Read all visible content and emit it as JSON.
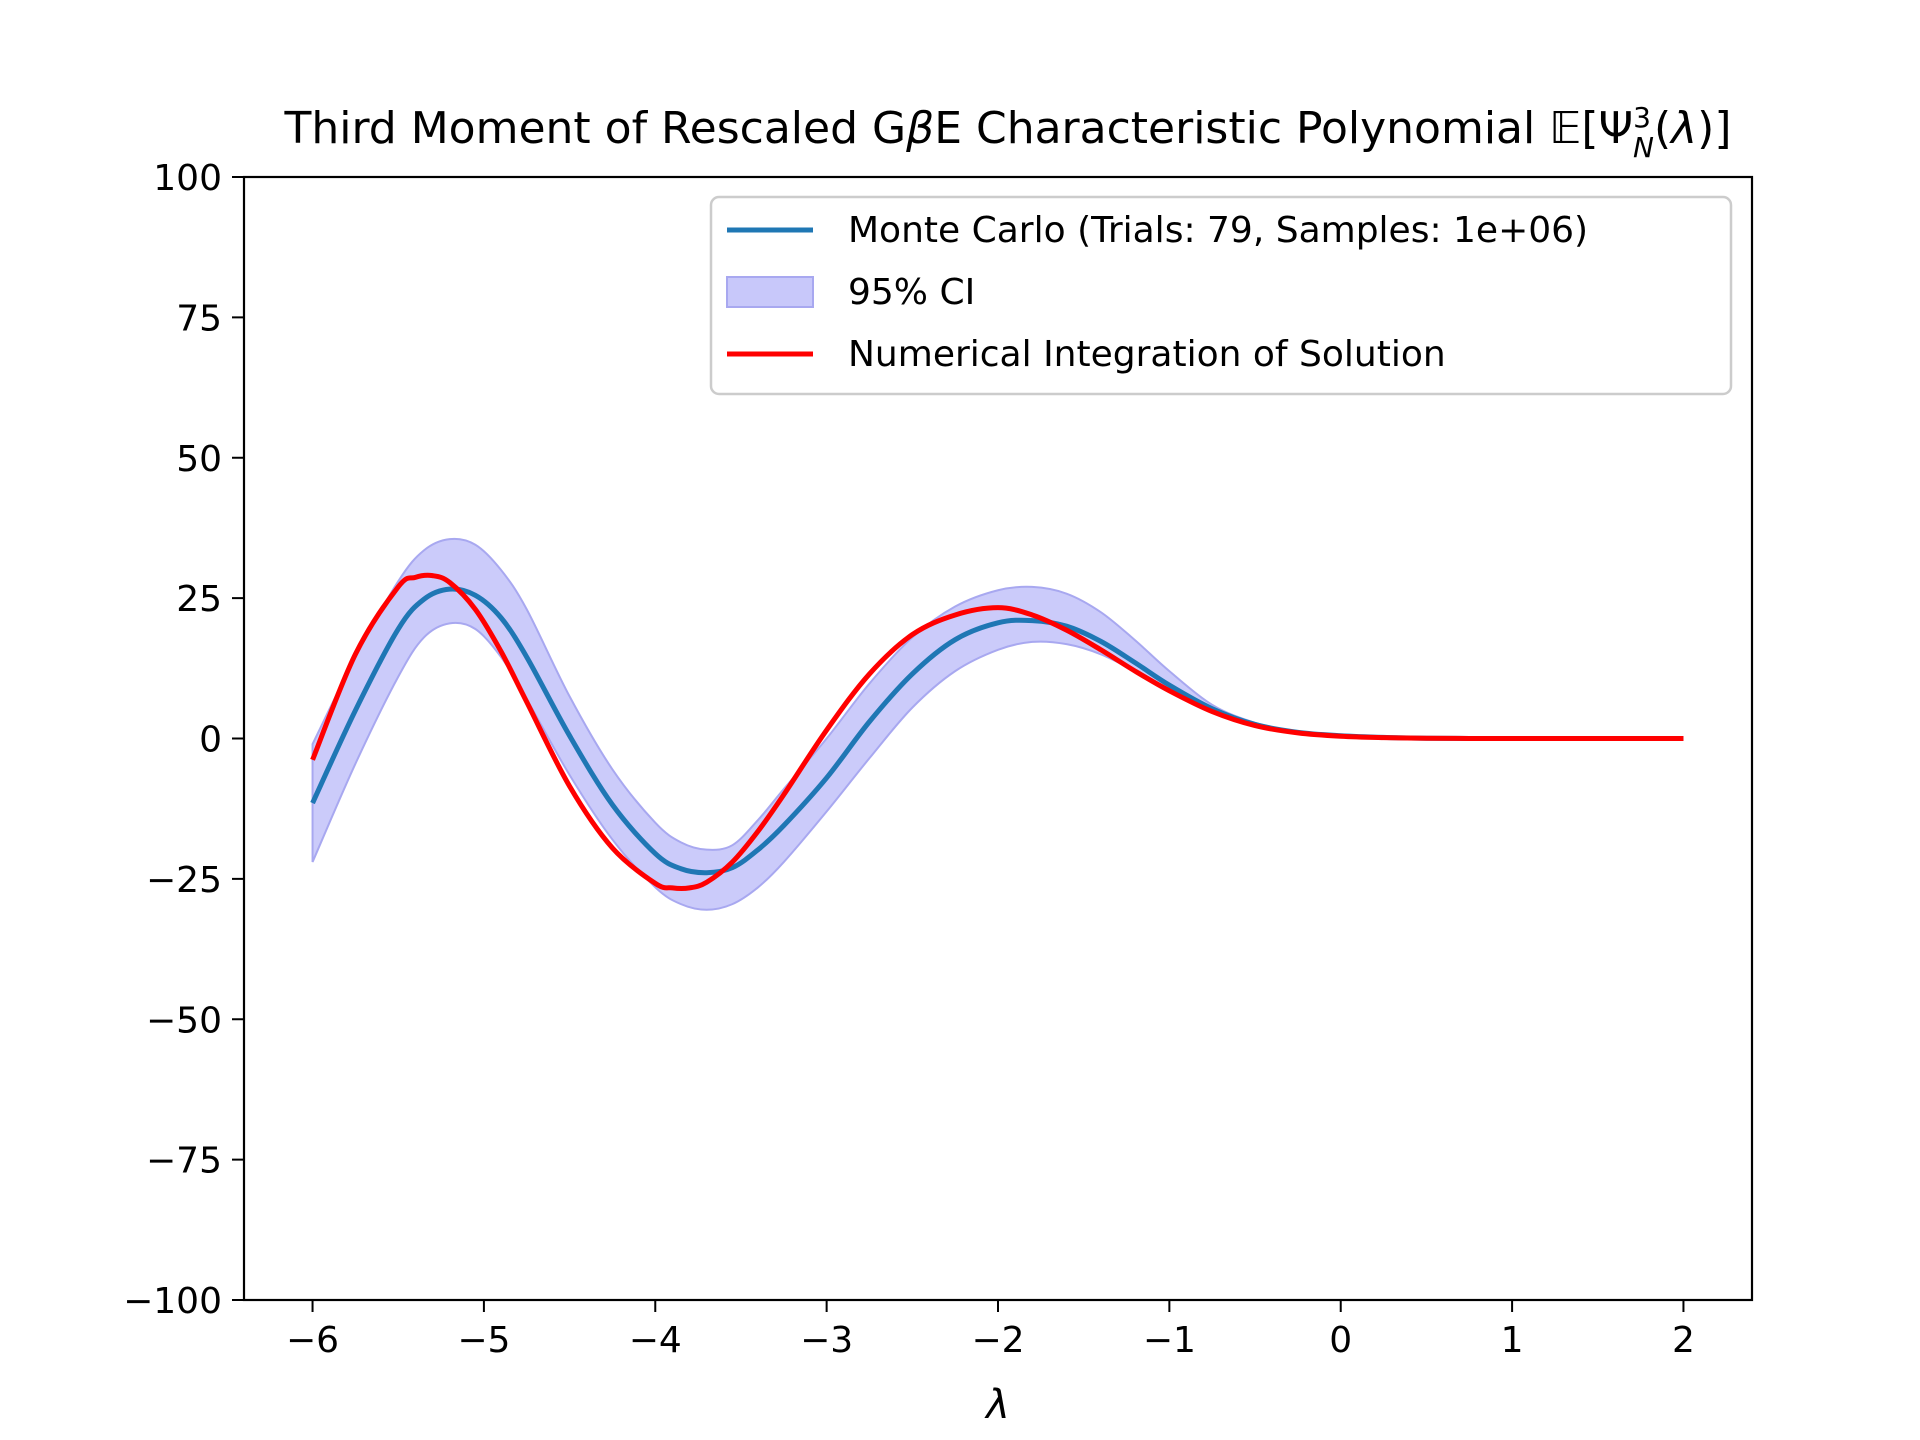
{
  "chart_data": {
    "type": "line",
    "title": "Third Moment of Rescaled GβE Characteristic Polynomial 𝔼[Ψ³_N(λ)]",
    "title_parts": {
      "prefix": "Third Moment of Rescaled G",
      "beta": "β",
      "mid": "E Characteristic Polynomial ",
      "expect": "𝔼",
      "bracket_open": "[",
      "psi": "Ψ",
      "sup": "3",
      "sub": "N",
      "open_paren": "(",
      "lambda": "λ",
      "close": ")]"
    },
    "xlabel": "λ",
    "ylabel": "",
    "xlim": [
      -6.4,
      2.4
    ],
    "ylim": [
      -100,
      100
    ],
    "x_ticks": [
      -6,
      -5,
      -4,
      -3,
      -2,
      -1,
      0,
      1,
      2
    ],
    "x_tick_labels": [
      "−6",
      "−5",
      "−4",
      "−3",
      "−2",
      "−1",
      "0",
      "1",
      "2"
    ],
    "y_ticks": [
      100,
      75,
      50,
      25,
      0,
      -25,
      -50,
      -75,
      -100
    ],
    "y_tick_labels": [
      "100",
      "75",
      "50",
      "25",
      "0",
      "−25",
      "−50",
      "−75",
      "−100"
    ],
    "grid": false,
    "legend_position": "top-right",
    "colors": {
      "monte_carlo": "#1f77b4",
      "ci_fill": "#c8c8fa",
      "ci_edge": "#a8a8f0",
      "numerical": "#ff0000"
    },
    "series": [
      {
        "name": "Monte Carlo (Trials: 79, Samples: 1e+06)",
        "color": "#1f77b4",
        "x": [
          -6.0,
          -5.75,
          -5.5,
          -5.35,
          -5.2,
          -5.05,
          -4.9,
          -4.75,
          -4.5,
          -4.25,
          -4.0,
          -3.85,
          -3.7,
          -3.55,
          -3.4,
          -3.25,
          -3.0,
          -2.75,
          -2.5,
          -2.25,
          -2.0,
          -1.8,
          -1.6,
          -1.4,
          -1.2,
          -1.0,
          -0.75,
          -0.5,
          -0.25,
          0.0,
          0.25,
          0.5,
          0.75,
          1.0,
          1.5,
          2.0
        ],
        "y": [
          -11.5,
          5.0,
          19.5,
          24.8,
          26.6,
          25.5,
          21.5,
          14.5,
          0.5,
          -11.8,
          -20.5,
          -23.2,
          -23.9,
          -23.0,
          -19.8,
          -15.5,
          -7.0,
          3.0,
          11.5,
          17.6,
          20.6,
          21.0,
          20.0,
          17.3,
          13.5,
          9.5,
          5.3,
          2.5,
          1.1,
          0.5,
          0.2,
          0.05,
          0.01,
          0.0,
          0.0,
          0.0
        ]
      },
      {
        "name": "95% CI",
        "color": "#c8c8fa",
        "x": [
          -6.0,
          -5.75,
          -5.5,
          -5.35,
          -5.2,
          -5.05,
          -4.9,
          -4.75,
          -4.5,
          -4.25,
          -4.0,
          -3.85,
          -3.7,
          -3.55,
          -3.4,
          -3.25,
          -3.0,
          -2.75,
          -2.5,
          -2.25,
          -2.0,
          -1.8,
          -1.6,
          -1.4,
          -1.2,
          -1.0,
          -0.75,
          -0.5,
          -0.25,
          0.0,
          0.25,
          0.5,
          0.75,
          1.0,
          1.5,
          2.0
        ],
        "lower": [
          -22.0,
          -4.5,
          11.0,
          18.0,
          20.5,
          19.5,
          14.5,
          7.0,
          -6.5,
          -18.0,
          -26.5,
          -29.5,
          -30.5,
          -29.5,
          -26.5,
          -22.0,
          -13.0,
          -3.5,
          5.5,
          12.0,
          15.8,
          17.2,
          16.8,
          15.0,
          12.0,
          8.8,
          5.0,
          2.3,
          1.0,
          0.4,
          0.15,
          0.04,
          0.0,
          0.0,
          0.0,
          0.0
        ],
        "upper": [
          -1.0,
          14.5,
          28.0,
          33.5,
          35.5,
          34.5,
          30.0,
          23.0,
          7.5,
          -5.5,
          -15.0,
          -18.5,
          -19.8,
          -19.0,
          -14.5,
          -9.0,
          0.0,
          9.8,
          18.0,
          23.5,
          26.4,
          27.0,
          25.8,
          22.5,
          17.5,
          12.0,
          6.0,
          2.8,
          1.2,
          0.6,
          0.25,
          0.06,
          0.02,
          0.0,
          0.0,
          0.0
        ]
      },
      {
        "name": "Numerical Integration of Solution",
        "color": "#ff0000",
        "x": [
          -6.0,
          -5.75,
          -5.5,
          -5.4,
          -5.3,
          -5.2,
          -5.05,
          -4.9,
          -4.75,
          -4.5,
          -4.25,
          -4.0,
          -3.9,
          -3.8,
          -3.7,
          -3.55,
          -3.4,
          -3.25,
          -3.0,
          -2.75,
          -2.5,
          -2.25,
          -2.0,
          -1.8,
          -1.6,
          -1.4,
          -1.2,
          -1.0,
          -0.75,
          -0.5,
          -0.25,
          0.0,
          0.25,
          0.5,
          0.75,
          1.0,
          1.5,
          2.0
        ],
        "y": [
          -3.8,
          15.0,
          27.0,
          28.7,
          29.0,
          27.8,
          23.0,
          15.5,
          6.5,
          -8.5,
          -19.5,
          -25.8,
          -26.6,
          -26.6,
          -25.6,
          -22.0,
          -16.5,
          -10.0,
          1.5,
          11.5,
          18.5,
          22.0,
          23.3,
          22.0,
          19.3,
          15.8,
          12.0,
          8.5,
          4.8,
          2.3,
          1.0,
          0.4,
          0.15,
          0.04,
          0.01,
          0.0,
          0.0,
          0.0
        ]
      }
    ],
    "legend": {
      "monte_carlo": "Monte Carlo (Trials: 79, Samples: 1e+06)",
      "ci": "95% CI",
      "numerical": "Numerical Integration of Solution"
    }
  }
}
